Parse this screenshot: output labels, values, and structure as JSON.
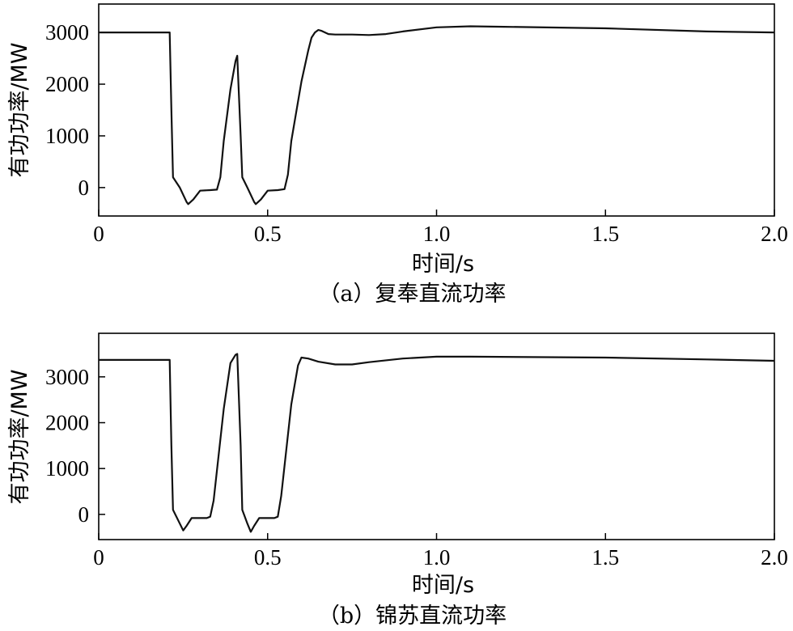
{
  "chart_data": [
    {
      "type": "line",
      "xlabel": "时间/s",
      "ylabel": "有功功率/MW",
      "caption": "（a）复奉直流功率",
      "xlim": [
        0,
        2.0
      ],
      "ylim": [
        -550,
        3550
      ],
      "xticks": [
        0,
        0.5,
        1.0,
        1.5,
        2.0
      ],
      "xtick_labels": [
        "0",
        "0.5",
        "1.0",
        "1.5",
        "2.0"
      ],
      "yticks": [
        0,
        1000,
        2000,
        3000
      ],
      "ytick_labels": [
        "0",
        "1000",
        "2000",
        "3000"
      ],
      "series": [
        {
          "x": [
            0,
            0.21,
            0.215,
            0.22,
            0.24,
            0.26,
            0.265,
            0.28,
            0.3,
            0.33,
            0.35,
            0.36,
            0.37,
            0.39,
            0.405,
            0.41,
            0.42,
            0.425,
            0.44,
            0.46,
            0.465,
            0.48,
            0.5,
            0.53,
            0.55,
            0.56,
            0.57,
            0.6,
            0.62,
            0.63,
            0.64,
            0.65,
            0.66,
            0.68,
            0.7,
            0.75,
            0.8,
            0.85,
            0.9,
            1.0,
            1.1,
            1.2,
            1.5,
            1.8,
            2.0
          ],
          "y": [
            3000,
            3000,
            1500,
            200,
            0,
            -280,
            -320,
            -230,
            -60,
            -50,
            -40,
            200,
            900,
            1900,
            2450,
            2550,
            1000,
            200,
            0,
            -280,
            -320,
            -230,
            -60,
            -50,
            -30,
            250,
            900,
            2050,
            2650,
            2900,
            3000,
            3050,
            3030,
            2970,
            2960,
            2960,
            2950,
            2970,
            3020,
            3100,
            3120,
            3110,
            3080,
            3020,
            3000
          ]
        }
      ]
    },
    {
      "type": "line",
      "xlabel": "时间/s",
      "ylabel": "有功功率/MW",
      "caption": "（b）锦苏直流功率",
      "xlim": [
        0,
        2.0
      ],
      "ylim": [
        -550,
        3950
      ],
      "xticks": [
        0,
        0.5,
        1.0,
        1.5,
        2.0
      ],
      "xtick_labels": [
        "0",
        "0.5",
        "1.0",
        "1.5",
        "2.0"
      ],
      "yticks": [
        0,
        1000,
        2000,
        3000
      ],
      "ytick_labels": [
        "0",
        "1000",
        "2000",
        "3000"
      ],
      "series": [
        {
          "x": [
            0,
            0.21,
            0.215,
            0.22,
            0.24,
            0.25,
            0.26,
            0.275,
            0.3,
            0.32,
            0.33,
            0.34,
            0.37,
            0.39,
            0.405,
            0.41,
            0.42,
            0.425,
            0.44,
            0.45,
            0.46,
            0.475,
            0.5,
            0.52,
            0.53,
            0.54,
            0.57,
            0.59,
            0.6,
            0.62,
            0.65,
            0.7,
            0.75,
            0.8,
            0.9,
            1.0,
            1.1,
            1.5,
            1.8,
            2.0
          ],
          "y": [
            3370,
            3370,
            1500,
            100,
            -200,
            -350,
            -250,
            -80,
            -80,
            -80,
            -50,
            300,
            2300,
            3300,
            3480,
            3500,
            1500,
            100,
            -200,
            -380,
            -250,
            -80,
            -80,
            -80,
            -50,
            400,
            2400,
            3250,
            3420,
            3400,
            3330,
            3270,
            3270,
            3320,
            3400,
            3440,
            3440,
            3420,
            3380,
            3350
          ]
        }
      ]
    }
  ]
}
